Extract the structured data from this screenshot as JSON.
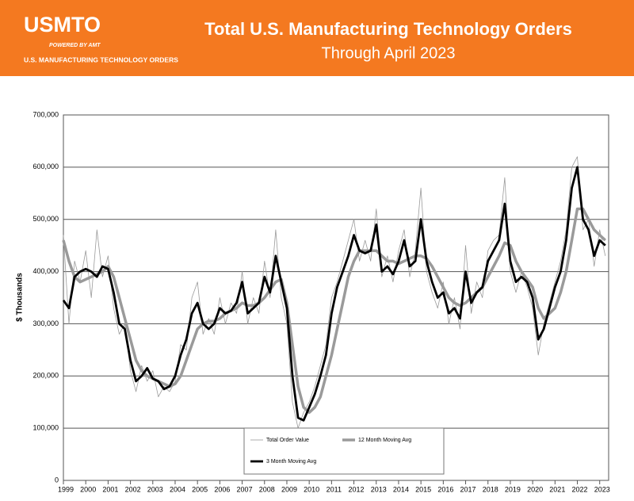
{
  "logo": {
    "name": "USMTO",
    "tagline": "POWERED BY AMT",
    "subtitle": "U.S. MANUFACTURING TECHNOLOGY ORDERS"
  },
  "chart_data": {
    "type": "line",
    "title": "Total U.S. Manufacturing Technology Orders",
    "subtitle": "Through April 2023",
    "y_label": "$ Thousands",
    "x": [
      1999,
      1999.25,
      1999.5,
      1999.75,
      2000,
      2000.25,
      2000.5,
      2000.75,
      2001,
      2001.25,
      2001.5,
      2001.75,
      2002,
      2002.25,
      2002.5,
      2002.75,
      2003,
      2003.25,
      2003.5,
      2003.75,
      2004,
      2004.25,
      2004.5,
      2004.75,
      2005,
      2005.25,
      2005.5,
      2005.75,
      2006,
      2006.25,
      2006.5,
      2006.75,
      2007,
      2007.25,
      2007.5,
      2007.75,
      2008,
      2008.25,
      2008.5,
      2008.75,
      2009,
      2009.25,
      2009.5,
      2009.75,
      2010,
      2010.25,
      2010.5,
      2010.75,
      2011,
      2011.25,
      2011.5,
      2011.75,
      2012,
      2012.25,
      2012.5,
      2012.75,
      2013,
      2013.25,
      2013.5,
      2013.75,
      2014,
      2014.25,
      2014.5,
      2014.75,
      2015,
      2015.25,
      2015.5,
      2015.75,
      2016,
      2016.25,
      2016.5,
      2016.75,
      2017,
      2017.25,
      2017.5,
      2017.75,
      2018,
      2018.25,
      2018.5,
      2018.75,
      2019,
      2019.25,
      2019.5,
      2019.75,
      2020,
      2020.25,
      2020.5,
      2020.75,
      2021,
      2021.25,
      2021.5,
      2021.75,
      2022,
      2022.25,
      2022.5,
      2022.75,
      2023,
      2023.25
    ],
    "series": [
      {
        "name": "Total Order Value",
        "color": "#9a9a9a",
        "values": [
          470000,
          300000,
          420000,
          380000,
          440000,
          350000,
          480000,
          390000,
          430000,
          330000,
          280000,
          300000,
          210000,
          170000,
          220000,
          190000,
          210000,
          160000,
          180000,
          170000,
          190000,
          260000,
          250000,
          350000,
          380000,
          280000,
          310000,
          280000,
          350000,
          300000,
          340000,
          320000,
          400000,
          300000,
          350000,
          320000,
          420000,
          350000,
          480000,
          350000,
          300000,
          150000,
          100000,
          130000,
          150000,
          180000,
          220000,
          260000,
          350000,
          380000,
          420000,
          460000,
          500000,
          420000,
          460000,
          420000,
          520000,
          390000,
          430000,
          380000,
          440000,
          480000,
          390000,
          440000,
          560000,
          400000,
          360000,
          330000,
          380000,
          300000,
          350000,
          290000,
          450000,
          320000,
          380000,
          350000,
          440000,
          460000,
          470000,
          580000,
          400000,
          360000,
          400000,
          370000,
          330000,
          240000,
          300000,
          340000,
          380000,
          420000,
          480000,
          600000,
          620000,
          480000,
          500000,
          410000,
          480000,
          430000
        ]
      },
      {
        "name": "12 Month Moving Avg",
        "color": "#9a9a9a",
        "values": [
          460000,
          420000,
          390000,
          380000,
          385000,
          390000,
          395000,
          400000,
          410000,
          390000,
          350000,
          310000,
          270000,
          230000,
          210000,
          200000,
          195000,
          190000,
          185000,
          180000,
          185000,
          200000,
          230000,
          260000,
          290000,
          300000,
          305000,
          305000,
          310000,
          320000,
          325000,
          330000,
          340000,
          335000,
          335000,
          340000,
          350000,
          365000,
          380000,
          385000,
          340000,
          260000,
          180000,
          140000,
          130000,
          140000,
          160000,
          200000,
          240000,
          290000,
          340000,
          390000,
          420000,
          440000,
          440000,
          440000,
          440000,
          430000,
          420000,
          420000,
          415000,
          420000,
          425000,
          430000,
          430000,
          425000,
          410000,
          390000,
          370000,
          350000,
          340000,
          335000,
          340000,
          350000,
          360000,
          370000,
          390000,
          410000,
          430000,
          455000,
          450000,
          420000,
          400000,
          385000,
          370000,
          330000,
          310000,
          320000,
          330000,
          360000,
          400000,
          460000,
          520000,
          520000,
          500000,
          480000,
          470000,
          460000
        ]
      },
      {
        "name": "3 Month Moving Avg",
        "color": "#000000",
        "values": [
          345000,
          330000,
          390000,
          400000,
          405000,
          400000,
          390000,
          410000,
          405000,
          360000,
          300000,
          290000,
          230000,
          190000,
          200000,
          215000,
          195000,
          190000,
          175000,
          180000,
          200000,
          240000,
          270000,
          320000,
          340000,
          300000,
          290000,
          300000,
          330000,
          320000,
          325000,
          340000,
          380000,
          320000,
          330000,
          340000,
          390000,
          360000,
          430000,
          380000,
          330000,
          200000,
          120000,
          115000,
          140000,
          165000,
          200000,
          240000,
          320000,
          370000,
          400000,
          430000,
          470000,
          440000,
          435000,
          440000,
          490000,
          400000,
          410000,
          395000,
          420000,
          460000,
          410000,
          420000,
          500000,
          420000,
          380000,
          350000,
          360000,
          320000,
          330000,
          310000,
          400000,
          340000,
          360000,
          370000,
          420000,
          440000,
          460000,
          530000,
          420000,
          380000,
          390000,
          380000,
          350000,
          270000,
          290000,
          330000,
          370000,
          400000,
          460000,
          560000,
          600000,
          500000,
          480000,
          430000,
          460000,
          450000
        ]
      }
    ],
    "xlim": [
      1999,
      2023.4
    ],
    "xticks": [
      1999,
      2000,
      2001,
      2002,
      2003,
      2004,
      2005,
      2006,
      2007,
      2008,
      2009,
      2010,
      2011,
      2012,
      2013,
      2014,
      2015,
      2016,
      2017,
      2018,
      2019,
      2020,
      2021,
      2022,
      2023
    ],
    "ylim": [
      0,
      700000
    ],
    "yticks": [
      0,
      {
        "value": 100000,
        "label": "100,000"
      },
      {
        "value": 200000,
        "label": "200,000"
      },
      {
        "value": 300000,
        "label": "300,000"
      },
      {
        "value": 400000,
        "label": "400,000"
      },
      {
        "value": 500000,
        "label": "500,000"
      },
      {
        "value": 600000,
        "label": "600,000"
      },
      {
        "value": 700000,
        "label": "700,000"
      }
    ],
    "grid": true
  }
}
